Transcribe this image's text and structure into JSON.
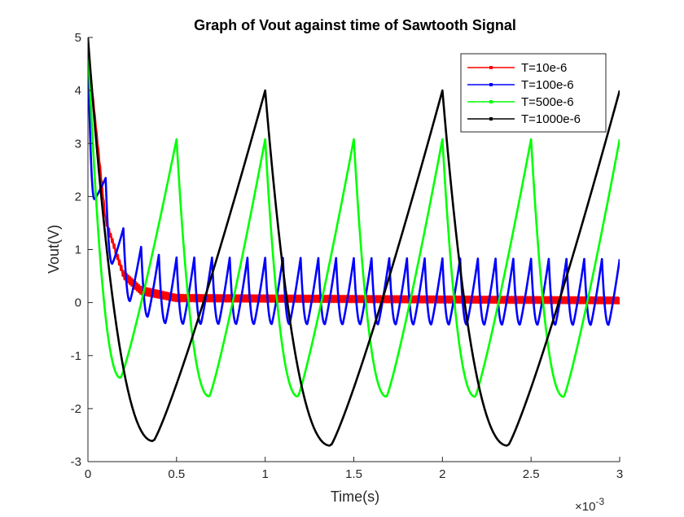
{
  "chart_data": {
    "type": "line",
    "title": "Graph of Vout against time of Sawtooth Signal",
    "xlabel": "Time(s)",
    "ylabel": "Vout(V)",
    "x_exponent_prefix": "×10",
    "x_exponent_power": "-3",
    "xlim": [
      0,
      0.003
    ],
    "ylim": [
      -3,
      5
    ],
    "x_ticks": [
      0,
      0.0005,
      0.001,
      0.0015,
      0.002,
      0.0025,
      0.003
    ],
    "x_tick_labels": [
      "0",
      "0.5",
      "1",
      "1.5",
      "2",
      "2.5",
      "3"
    ],
    "y_ticks": [
      -3,
      -2,
      -1,
      0,
      1,
      2,
      3,
      4,
      5
    ],
    "y_tick_labels": [
      "-3",
      "-2",
      "-1",
      "0",
      "1",
      "2",
      "3",
      "4",
      "5"
    ],
    "grid": false,
    "legend_position": "top-right",
    "series": [
      {
        "name": "T=10e-6",
        "color": "#ff0000",
        "period": 1e-05,
        "amplitude": 0.1,
        "peaks": [
          [
            0,
            4.8
          ],
          [
            0.0001,
            1.6
          ],
          [
            0.0002,
            0.6
          ],
          [
            0.0003,
            0.3
          ],
          [
            0.0005,
            0.15
          ],
          [
            0.003,
            0.1
          ]
        ],
        "troughs": [
          [
            0,
            4.8
          ],
          [
            0.0001,
            1.5
          ],
          [
            0.0002,
            0.45
          ],
          [
            0.0003,
            0.15
          ],
          [
            0.0005,
            0.02
          ],
          [
            0.003,
            -0.02
          ]
        ]
      },
      {
        "name": "T=100e-6",
        "color": "#0000ff",
        "period": 0.0001,
        "peaks": [
          [
            0,
            4.9
          ],
          [
            0.0001,
            2.35
          ],
          [
            0.0002,
            1.4
          ],
          [
            0.0003,
            1.05
          ],
          [
            0.0004,
            0.9
          ],
          [
            0.0005,
            0.85
          ],
          [
            0.003,
            0.82
          ]
        ],
        "troughs": [
          [
            5e-05,
            1.95
          ],
          [
            0.00015,
            0.55
          ],
          [
            0.00025,
            -0.05
          ],
          [
            0.00035,
            -0.3
          ],
          [
            0.00045,
            -0.4
          ],
          [
            0.003,
            -0.42
          ]
        ]
      },
      {
        "name": "T=500e-6",
        "color": "#00ff00",
        "period": 0.0005,
        "peaks": [
          [
            0,
            4.9
          ],
          [
            0.0005,
            3.08
          ],
          [
            0.003,
            3.08
          ]
        ],
        "troughs": [
          [
            0.000185,
            -1.42
          ],
          [
            0.00068,
            -1.77
          ],
          [
            0.003,
            -1.78
          ]
        ]
      },
      {
        "name": "T=1000e-6",
        "color": "#000000",
        "period": 0.001,
        "peaks": [
          [
            0,
            5.0
          ],
          [
            0.001,
            4.0
          ],
          [
            0.003,
            4.0
          ]
        ],
        "troughs": [
          [
            0.00024,
            -2.6
          ],
          [
            0.00122,
            -2.7
          ],
          [
            0.003,
            -2.7
          ]
        ]
      }
    ]
  }
}
